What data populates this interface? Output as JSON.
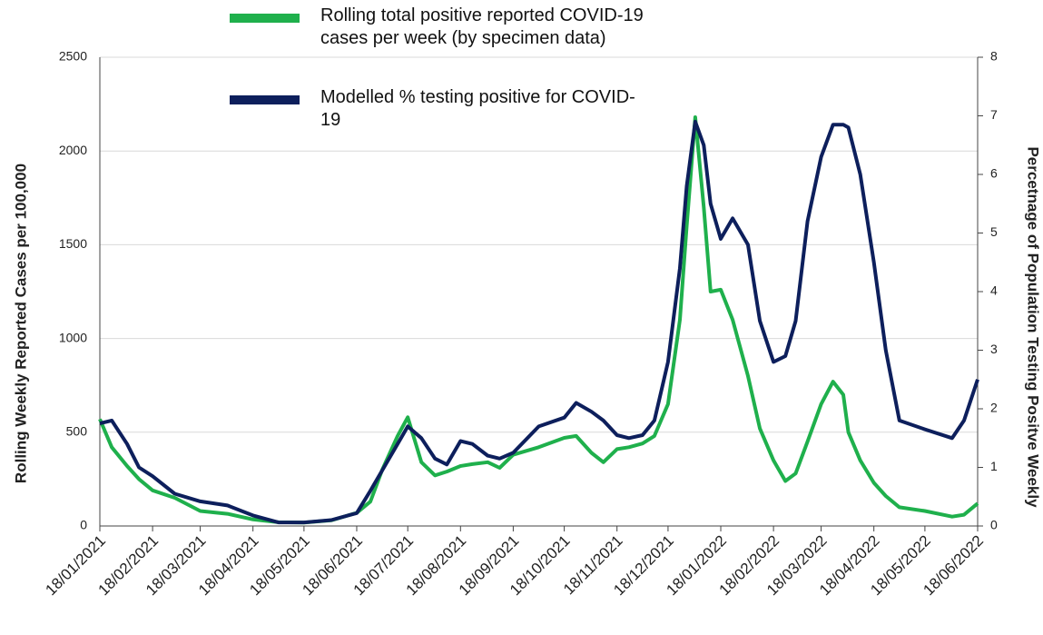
{
  "chart_data": {
    "type": "line",
    "y_label": "Rolling Weekly Reported Cases per 100,000",
    "y2_label": "Percetnage of Population Testing Positve Weekly",
    "x": [
      "18/01/2021",
      "25/01/2021",
      "03/02/2021",
      "10/02/2021",
      "18/02/2021",
      "03/03/2021",
      "18/03/2021",
      "03/04/2021",
      "18/04/2021",
      "03/05/2021",
      "18/05/2021",
      "03/06/2021",
      "18/06/2021",
      "26/06/2021",
      "03/07/2021",
      "12/07/2021",
      "18/07/2021",
      "26/07/2021",
      "03/08/2021",
      "10/08/2021",
      "18/08/2021",
      "25/08/2021",
      "03/09/2021",
      "10/09/2021",
      "18/09/2021",
      "03/10/2021",
      "18/10/2021",
      "25/10/2021",
      "03/11/2021",
      "10/11/2021",
      "18/11/2021",
      "25/11/2021",
      "03/12/2021",
      "10/12/2021",
      "18/12/2021",
      "25/12/2021",
      "29/12/2021",
      "03/01/2022",
      "08/01/2022",
      "12/01/2022",
      "18/01/2022",
      "25/01/2022",
      "03/02/2022",
      "10/02/2022",
      "18/02/2022",
      "25/02/2022",
      "03/03/2022",
      "10/03/2022",
      "18/03/2022",
      "25/03/2022",
      "31/03/2022",
      "03/04/2022",
      "10/04/2022",
      "18/04/2022",
      "25/04/2022",
      "03/05/2022",
      "18/05/2022",
      "03/06/2022",
      "10/06/2022",
      "18/06/2022"
    ],
    "series": [
      {
        "name": "Rolling total positive reported COVID-19 cases per week (by specimen data)",
        "color": "#1fb04c",
        "axis": "y",
        "values": [
          570,
          420,
          320,
          250,
          190,
          150,
          80,
          65,
          35,
          20,
          18,
          30,
          70,
          130,
          300,
          480,
          580,
          340,
          270,
          290,
          320,
          330,
          340,
          310,
          380,
          420,
          470,
          480,
          390,
          340,
          410,
          420,
          440,
          480,
          650,
          1100,
          1600,
          2180,
          1700,
          1250,
          1260,
          1100,
          800,
          520,
          350,
          240,
          280,
          450,
          650,
          770,
          700,
          500,
          350,
          230,
          160,
          100,
          80,
          50,
          60,
          120
        ]
      },
      {
        "name": "Modelled % testing positive for COVID-19",
        "color": "#0d1f5c",
        "axis": "y2",
        "values": [
          1.75,
          1.8,
          1.4,
          1.0,
          0.85,
          0.55,
          0.42,
          0.35,
          0.18,
          0.06,
          0.06,
          0.1,
          0.22,
          0.6,
          0.95,
          1.4,
          1.7,
          1.5,
          1.15,
          1.05,
          1.45,
          1.4,
          1.2,
          1.15,
          1.25,
          1.7,
          1.85,
          2.1,
          1.95,
          1.8,
          1.55,
          1.5,
          1.55,
          1.8,
          2.8,
          4.4,
          5.8,
          6.9,
          6.5,
          5.5,
          4.9,
          5.25,
          4.8,
          3.5,
          2.8,
          2.9,
          3.5,
          5.2,
          6.3,
          6.85,
          6.85,
          6.8,
          6.0,
          4.5,
          3.0,
          1.8,
          1.65,
          1.5,
          1.8,
          2.5
        ]
      }
    ],
    "xlim": [
      "18/01/2021",
      "18/06/2022"
    ],
    "xticks": [
      "18/01/2021",
      "18/02/2021",
      "18/03/2021",
      "18/04/2021",
      "18/05/2021",
      "18/06/2021",
      "18/07/2021",
      "18/08/2021",
      "18/09/2021",
      "18/10/2021",
      "18/11/2021",
      "18/12/2021",
      "18/01/2022",
      "18/02/2022",
      "18/03/2022",
      "18/04/2022",
      "18/05/2022",
      "18/06/2022"
    ],
    "ylim": [
      0,
      2500
    ],
    "yticks": [
      0,
      500,
      1000,
      1500,
      2000,
      2500
    ],
    "y2lim": [
      0,
      8
    ],
    "y2ticks": [
      0,
      1,
      2,
      3,
      4,
      5,
      6,
      7,
      8
    ],
    "grid": true,
    "legend": "top"
  }
}
